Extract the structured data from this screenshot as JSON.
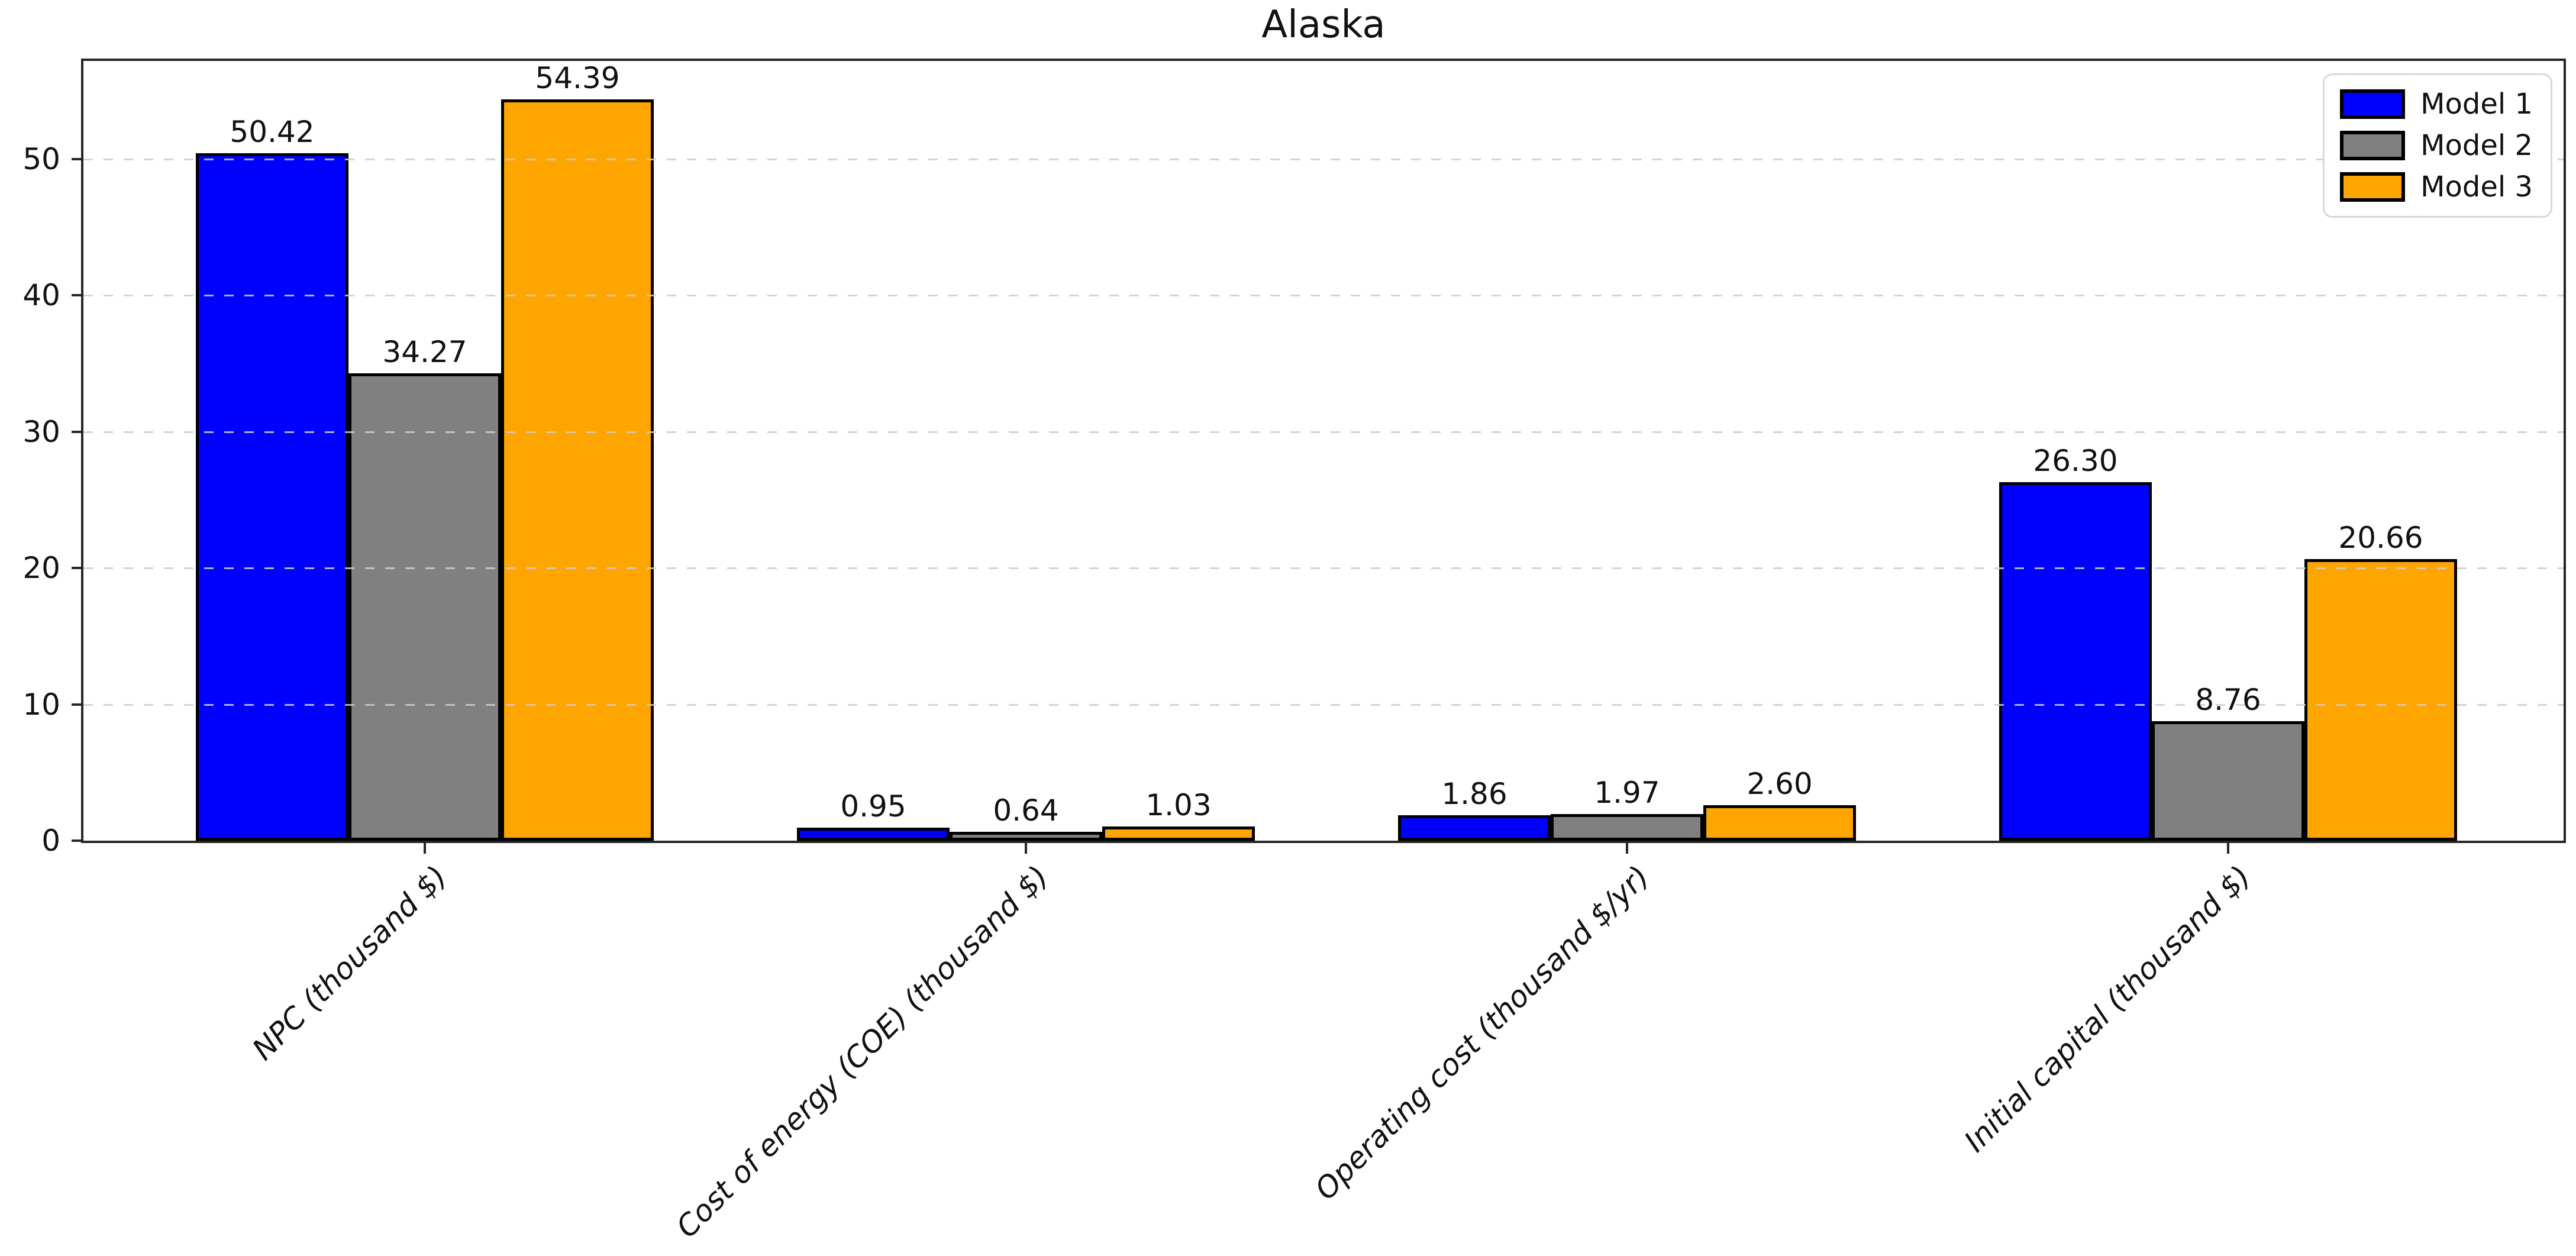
{
  "chart_data": {
    "type": "bar",
    "title": "Alaska",
    "categories": [
      "NPC (thousand $)",
      "Cost of energy (COE) (thousand $)",
      "Operating cost (thousand $/yr)",
      "Initial capital (thousand $)"
    ],
    "series": [
      {
        "name": "Model 1",
        "color": "#0000ff",
        "values": [
          50.42,
          0.95,
          1.86,
          26.3
        ]
      },
      {
        "name": "Model 2",
        "color": "#808080",
        "values": [
          34.27,
          0.64,
          1.97,
          8.76
        ]
      },
      {
        "name": "Model 3",
        "color": "#ffa500",
        "values": [
          54.39,
          1.03,
          2.6,
          20.66
        ]
      }
    ],
    "value_labels_shown": true,
    "value_label_format": ".2f",
    "yticks": [
      0,
      10,
      20,
      30,
      40,
      50
    ],
    "ylim": [
      0,
      57.2
    ],
    "xlabel": "",
    "ylabel": "",
    "grid": {
      "axis": "y",
      "style": "dashed",
      "color": "#cdcdcd",
      "drawn_above_bars": true
    },
    "legend": {
      "position": "upper-right",
      "entries": [
        "Model 1",
        "Model 2",
        "Model 3"
      ]
    },
    "bar_edge_color": "#000000",
    "x_tick_label_rotation_deg": 45,
    "x_tick_label_style": "italic"
  }
}
